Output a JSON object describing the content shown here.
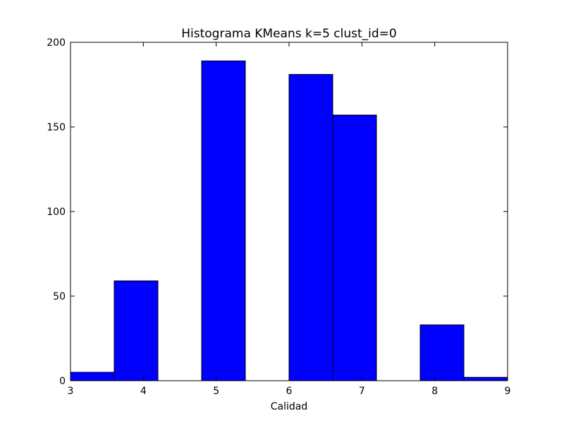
{
  "chart_data": {
    "type": "bar",
    "title": "Histograma KMeans k=5 clust_id=0",
    "xlabel": "Calidad",
    "ylabel": "",
    "xlim": [
      3,
      9
    ],
    "ylim": [
      0,
      200
    ],
    "x_ticks": [
      3,
      4,
      5,
      6,
      7,
      8,
      9
    ],
    "y_ticks": [
      0,
      50,
      100,
      150,
      200
    ],
    "grid": false,
    "legend": "none",
    "bar_color": "#0000ff",
    "edge_color": "#000000",
    "bins": [
      {
        "start": 3.0,
        "end": 3.6,
        "count": 5
      },
      {
        "start": 3.6,
        "end": 4.2,
        "count": 59
      },
      {
        "start": 4.2,
        "end": 4.8,
        "count": 0
      },
      {
        "start": 4.8,
        "end": 5.4,
        "count": 189
      },
      {
        "start": 5.4,
        "end": 6.0,
        "count": 0
      },
      {
        "start": 6.0,
        "end": 6.6,
        "count": 181
      },
      {
        "start": 6.6,
        "end": 7.2,
        "count": 157
      },
      {
        "start": 7.2,
        "end": 7.8,
        "count": 0
      },
      {
        "start": 7.8,
        "end": 8.4,
        "count": 33
      },
      {
        "start": 8.4,
        "end": 9.0,
        "count": 2
      }
    ]
  }
}
